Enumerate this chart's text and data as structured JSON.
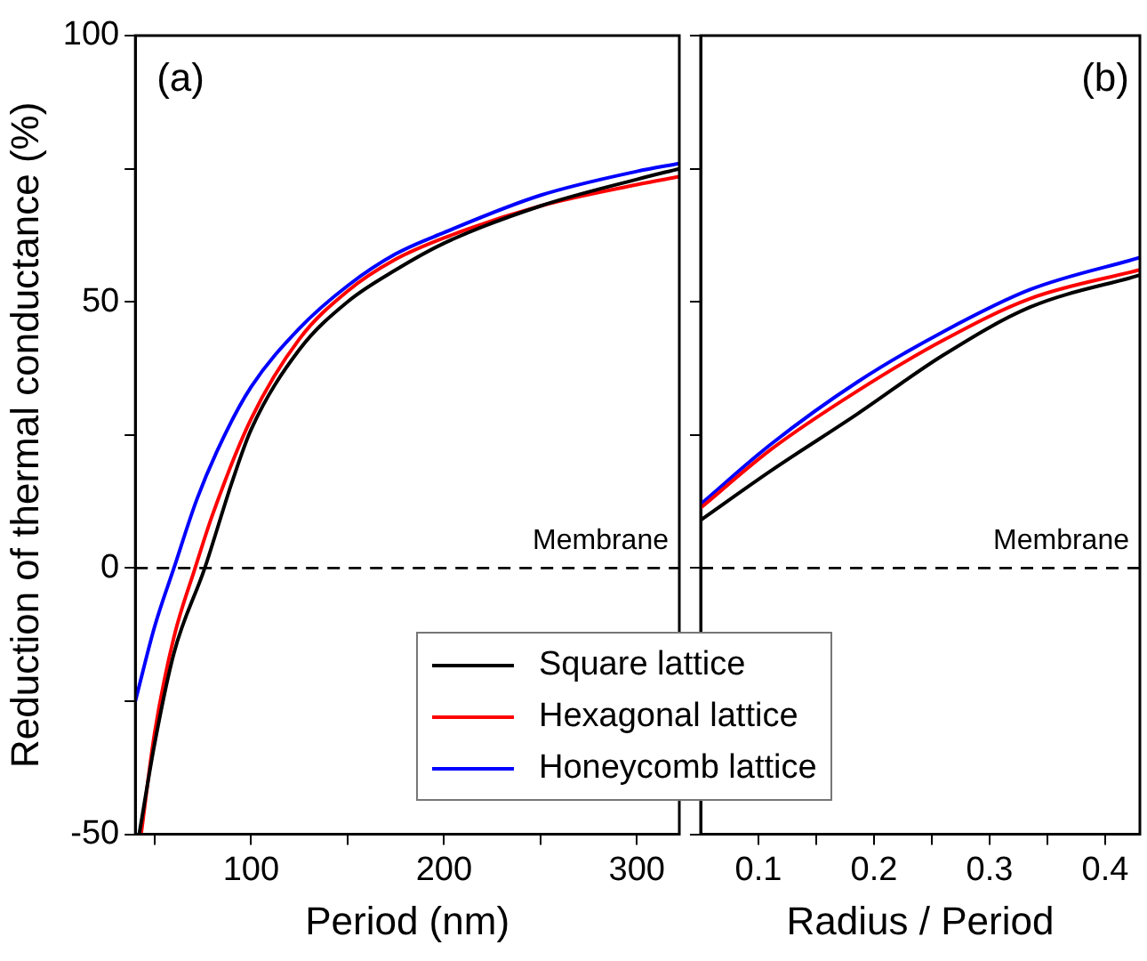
{
  "chart_data": [
    {
      "type": "line",
      "ylabel": "Reduction of thermal conductance (%)",
      "xlabel": "Period (nm)",
      "annotations": [
        "(a)"
      ],
      "xlim": [
        40,
        322
      ],
      "xticks": [
        {
          "value": 50,
          "label": null
        },
        100,
        {
          "value": 150,
          "label": null
        },
        200,
        {
          "value": 250,
          "label": null
        },
        300
      ],
      "ylim": [
        -50,
        100
      ],
      "yticks": [
        -50,
        {
          "value": -25,
          "label": null
        },
        0,
        {
          "value": 25,
          "label": null
        },
        50,
        {
          "value": 75,
          "label": null
        },
        100
      ],
      "grid": false,
      "legend": "bottom right",
      "marker": "none",
      "line_style": "solid",
      "ref_lines": [
        {
          "axis": "y",
          "value": 0,
          "label": "Membrane",
          "color": "#000000",
          "line_style": "dashed"
        }
      ],
      "series": [
        {
          "name": "Square lattice",
          "color": "#000000",
          "x": [
            42,
            50,
            60,
            76,
            90,
            100,
            125,
            150,
            175,
            200,
            250,
            300,
            322
          ],
          "values": [
            -50,
            -33,
            -16,
            0,
            16,
            26,
            41,
            50,
            56,
            61,
            68,
            73,
            75
          ]
        },
        {
          "name": "Hexagonal lattice",
          "color": "#ff0000",
          "x": [
            43,
            50,
            60,
            71,
            80,
            100,
            125,
            150,
            175,
            200,
            250,
            300,
            322
          ],
          "values": [
            -50,
            -31,
            -13,
            0,
            10,
            28,
            43,
            52,
            58,
            62,
            68,
            72,
            73.5
          ]
        },
        {
          "name": "Honeycomb lattice",
          "color": "#0000ff",
          "x": [
            40,
            50,
            60,
            72,
            85,
            100,
            125,
            150,
            175,
            200,
            250,
            300,
            322
          ],
          "values": [
            -25,
            -11,
            0,
            13,
            24,
            34,
            45,
            53,
            59,
            63,
            70,
            74.5,
            76
          ]
        }
      ]
    },
    {
      "type": "line",
      "xlabel": "Radius / Period",
      "annotations": [
        "(b)"
      ],
      "xlim": [
        0.05,
        0.43
      ],
      "xticks": [
        0.1,
        {
          "value": 0.15,
          "label": null
        },
        0.2,
        {
          "value": 0.25,
          "label": null
        },
        0.3,
        {
          "value": 0.35,
          "label": null
        },
        0.4
      ],
      "ylim": [
        -50,
        100
      ],
      "yticks": [
        -50,
        {
          "value": -25,
          "label": null
        },
        0,
        {
          "value": 25,
          "label": null
        },
        50,
        {
          "value": 75,
          "label": null
        },
        100
      ],
      "tick_labels": "x",
      "grid": false,
      "marker": "none",
      "line_style": "solid",
      "ref_lines": [
        {
          "axis": "y",
          "value": 0,
          "label": "Membrane",
          "color": "#000000",
          "line_style": "dashed"
        }
      ],
      "series": [
        {
          "color": "#000000",
          "x": [
            0.05,
            0.111,
            0.186,
            0.26,
            0.335,
            0.43
          ],
          "values": [
            9,
            18.3,
            29,
            40,
            49,
            55
          ]
        },
        {
          "color": "#ff0000",
          "x": [
            0.05,
            0.111,
            0.186,
            0.26,
            0.335,
            0.43
          ],
          "values": [
            11.3,
            22.3,
            33.3,
            42.8,
            50.6,
            56
          ]
        },
        {
          "color": "#0000ff",
          "x": [
            0.05,
            0.111,
            0.186,
            0.26,
            0.335,
            0.43
          ],
          "values": [
            12,
            23.3,
            35,
            44.4,
            52.3,
            58.3
          ]
        }
      ]
    }
  ]
}
